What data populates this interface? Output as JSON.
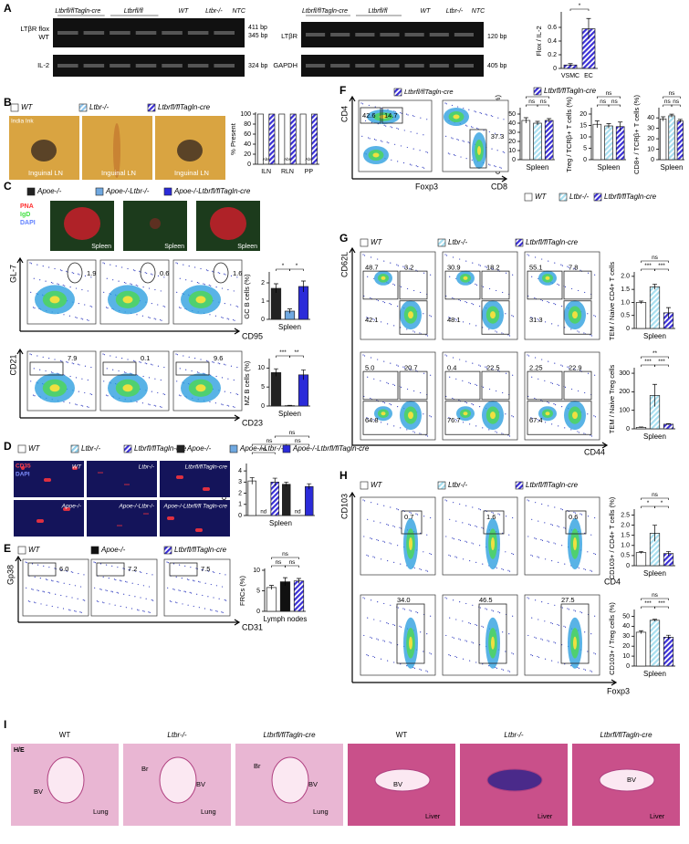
{
  "panels": {
    "A": {
      "label": "A",
      "gel1": {
        "lanes": [
          "Ltbrfl/flTagln-cre",
          "Ltbrfl/fl",
          "WT",
          "Ltbr-/-",
          "NTC"
        ],
        "rows": [
          "LTβR flox",
          "WT",
          "IL-2"
        ],
        "sizes": [
          "411 bp",
          "345 bp",
          "324 bp"
        ]
      },
      "gel2": {
        "lanes": [
          "Ltbrfl/flTagln-cre",
          "Ltbrfl/fl",
          "WT",
          "Ltbr-/-",
          "NTC"
        ],
        "rows": [
          "LTβR",
          "GAPDH"
        ],
        "sizes": [
          "120 bp",
          "405 bp"
        ]
      },
      "legend": [
        {
          "name": "Ltbrfl/flTagln-cre",
          "color": "#3a2fd6",
          "hatched": true
        }
      ]
    },
    "B": {
      "label": "B",
      "photo_text": "India Ink",
      "photos": [
        "Inguinal LN",
        "Inguinal LN",
        "Inguinal LN"
      ]
    },
    "C": {
      "label": "C",
      "legend": [
        {
          "name": "Apoe-/-",
          "color": "#222222",
          "hatched": false
        },
        {
          "name": "Apoe-/-Ltbr-/-",
          "color": "#6fa8e0",
          "hatched": false
        },
        {
          "name": "Apoe-/-Ltbrfl/flTagln-cre",
          "color": "#2b2bd9",
          "hatched": false
        }
      ],
      "stain": [
        "PNA",
        "IgD",
        "DAPI"
      ],
      "images": [
        "Spleen",
        "Spleen",
        "Spleen"
      ],
      "flow": [
        {
          "y": "GL-7",
          "x": "CD95",
          "gates": [
            "1.9",
            "0.6",
            "1.6"
          ]
        },
        {
          "y": "CD21",
          "x": "CD23",
          "gates": [
            "7.9",
            "0.1",
            "9.6"
          ]
        }
      ]
    },
    "D": {
      "label": "D",
      "legend": [
        {
          "name": "WT",
          "color": "#ffffff",
          "hatched": false
        },
        {
          "name": "Ltbr-/-",
          "color": "#8fd0ec",
          "hatched": true
        },
        {
          "name": "Ltbrfl/flTagln-cre",
          "color": "#3a2fd6",
          "hatched": true
        },
        {
          "name": "Apoe-/-",
          "color": "#222222",
          "hatched": false
        },
        {
          "name": "Apoe-/-Ltbr-/-",
          "color": "#6fa8e0",
          "hatched": false
        },
        {
          "name": "Apoe-/-Ltbrfl/flTagln-cre",
          "color": "#2b2bd9",
          "hatched": false
        }
      ],
      "stain": [
        "CD35",
        "DAPI"
      ],
      "images": [
        "WT",
        "Ltbr-/-",
        "Ltbrfl/flTagln-cre",
        "Apoe-/-",
        "Apoe-/-Ltbr-/-",
        "Apoe-/-Ltbrfl/fl Tagln-cre"
      ]
    },
    "E": {
      "label": "E",
      "legend": [
        {
          "name": "WT",
          "color": "#ffffff",
          "hatched": false
        },
        {
          "name": "Apoe-/-",
          "color": "#111111",
          "hatched": false
        },
        {
          "name": "Ltbrfl/flTagln-cre",
          "color": "#3a2fd6",
          "hatched": true
        }
      ],
      "flow": {
        "y": "Gp38",
        "x": "CD31",
        "gates": [
          "6.0",
          "7.2",
          "7.5"
        ]
      }
    },
    "F": {
      "label": "F",
      "title": "Ltbrfl/flTagln-cre",
      "y": "CD4",
      "x1": "Foxp3",
      "x2": "CD8",
      "gates": [
        "42.6",
        "14.7",
        "37.3"
      ],
      "legend": [
        {
          "name": "WT",
          "color": "#ffffff",
          "hatched": false
        },
        {
          "name": "Ltbr-/-",
          "color": "#a8dff0",
          "hatched": true
        },
        {
          "name": "Ltbrfl/flTagln-cre",
          "color": "#3a2fd6",
          "hatched": true
        }
      ]
    },
    "G": {
      "label": "G",
      "y": "CD62L",
      "x": "CD44",
      "gates": [
        [
          [
            "48.7",
            "3.2",
            "42.1"
          ],
          [
            "30.9",
            "18.2",
            "48.1"
          ],
          [
            "55.1",
            "7.8",
            "31.3"
          ]
        ],
        [
          [
            "5.0",
            "20.7",
            "64.8"
          ],
          [
            "0.4",
            "22.5",
            "76.7"
          ],
          [
            "2.25",
            "22.9",
            "67.4"
          ]
        ]
      ],
      "legend": [
        {
          "name": "WT",
          "color": "#ffffff",
          "hatched": false
        },
        {
          "name": "Ltbr-/-",
          "color": "#a8dff0",
          "hatched": true
        },
        {
          "name": "Ltbrfl/flTagln-cre",
          "color": "#3a2fd6",
          "hatched": true
        }
      ]
    },
    "H": {
      "label": "H",
      "y": "CD103",
      "x1": "CD4",
      "x2": "Foxp3",
      "gates": [
        [
          "0.7",
          "1.6",
          "0.6"
        ],
        [
          "34.0",
          "46.5",
          "27.5"
        ]
      ],
      "legend": [
        {
          "name": "WT",
          "color": "#ffffff",
          "hatched": false
        },
        {
          "name": "Ltbr-/-",
          "color": "#a8dff0",
          "hatched": true
        },
        {
          "name": "Ltbrfl/flTagln-cre",
          "color": "#3a2fd6",
          "hatched": true
        }
      ]
    },
    "I": {
      "label": "I",
      "titles": [
        "WT",
        "Ltbr-/-",
        "Ltbrfl/flTagln-cre",
        "WT",
        "Ltbr-/-",
        "Ltbrfl/flTagln-cre"
      ],
      "stain": "H/E",
      "marks": [
        [
          "BV",
          "Lung"
        ],
        [
          "Br",
          "BV",
          "Lung"
        ],
        [
          "Br",
          "BV",
          "Lung"
        ],
        [
          "BV",
          "Liver"
        ],
        [
          "Liver"
        ],
        [
          "BV",
          "Liver"
        ]
      ]
    }
  },
  "chart_data": [
    {
      "type": "bar",
      "ylabel": "Flox / IL-2",
      "categories": [
        "VSMC",
        "EC"
      ],
      "values": [
        0.05,
        0.58
      ],
      "errors": [
        0.02,
        0.15
      ],
      "colors": [
        "#3a2fd6",
        "#3a2fd6"
      ],
      "hatched": [
        true,
        true
      ],
      "ylim": [
        0,
        0.8
      ],
      "yticks": [
        0,
        0.2,
        0.4,
        0.6
      ],
      "brackets": [
        {
          "label": "*",
          "bars": [
            0,
            1
          ]
        }
      ]
    },
    {
      "type": "grouped-bar",
      "ylabel": "% Present",
      "categories": [
        "ILN",
        "RLN",
        "PP"
      ],
      "ylim": [
        0,
        100
      ],
      "yticks": [
        0,
        20,
        40,
        60,
        80,
        100
      ],
      "series": [
        {
          "name": "WT",
          "color": "#ffffff",
          "hatched": false,
          "values": [
            100,
            100,
            100
          ]
        },
        {
          "name": "Ltbr-/-",
          "color": "#8fc6ee",
          "hatched": true,
          "values": [
            0,
            0,
            0
          ],
          "notes": [
            "Abs",
            "Abs",
            "Abs"
          ]
        },
        {
          "name": "Ltbrfl/flTagln-cre",
          "color": "#3a2fd6",
          "hatched": true,
          "values": [
            100,
            100,
            100
          ]
        }
      ]
    },
    {
      "type": "bar",
      "ylabel": "GC B cells (%)",
      "xlabel": "Spleen",
      "values": [
        1.7,
        0.45,
        1.8
      ],
      "errors": [
        0.25,
        0.12,
        0.3
      ],
      "colors": [
        "#222222",
        "#6fa8e0",
        "#2b2bd9"
      ],
      "hatched": [
        false,
        false,
        false
      ],
      "ylim": [
        0,
        2.5
      ],
      "yticks": [
        0,
        1,
        2
      ],
      "brackets": [
        {
          "label": "*",
          "bars": [
            0,
            1
          ]
        },
        {
          "label": "*",
          "bars": [
            1,
            2
          ]
        }
      ]
    },
    {
      "type": "bar",
      "ylabel": "MZ B cells (%)",
      "xlabel": "Spleen",
      "values": [
        8.8,
        0.1,
        8.2
      ],
      "errors": [
        1.0,
        0.1,
        1.3
      ],
      "colors": [
        "#222222",
        "#6fa8e0",
        "#2b2bd9"
      ],
      "hatched": [
        false,
        false,
        false
      ],
      "ylim": [
        0,
        12
      ],
      "yticks": [
        0,
        5,
        10
      ],
      "brackets": [
        {
          "label": "***",
          "bars": [
            0,
            1
          ]
        },
        {
          "label": "**",
          "bars": [
            1,
            2
          ]
        }
      ]
    },
    {
      "type": "bar",
      "ylabel": "FDC density",
      "xlabel": "Spleen",
      "values": [
        3.1,
        0,
        3.0,
        2.8,
        0,
        2.6
      ],
      "errors": [
        0.3,
        0,
        0.35,
        0.2,
        0,
        0.25
      ],
      "notes": [
        null,
        "nd",
        null,
        null,
        "nd",
        null
      ],
      "colors": [
        "#ffffff",
        "#8fd0ec",
        "#3a2fd6",
        "#222222",
        "#6fa8e0",
        "#2b2bd9"
      ],
      "hatched": [
        false,
        true,
        true,
        false,
        false,
        false
      ],
      "ylim": [
        0,
        4.5
      ],
      "yticks": [
        0,
        1,
        2,
        3,
        4
      ],
      "brackets": [
        {
          "label": "ns",
          "bars": [
            0,
            2
          ]
        },
        {
          "label": "ns",
          "bars": [
            3,
            5
          ]
        },
        {
          "label": "ns",
          "bars": [
            0,
            3
          ]
        },
        {
          "label": "ns",
          "bars": [
            2,
            5
          ]
        }
      ]
    },
    {
      "type": "bar",
      "ylabel": "FRCs (%)",
      "xlabel": "Lymph nodes",
      "values": [
        5.8,
        7.2,
        7.4
      ],
      "errors": [
        0.5,
        1.0,
        0.6
      ],
      "colors": [
        "#ffffff",
        "#111111",
        "#3a2fd6"
      ],
      "hatched": [
        false,
        false,
        true
      ],
      "ylim": [
        0,
        10
      ],
      "yticks": [
        0,
        5,
        10
      ],
      "brackets": [
        {
          "label": "ns",
          "bars": [
            0,
            1
          ]
        },
        {
          "label": "ns",
          "bars": [
            1,
            2
          ]
        },
        {
          "label": "ns",
          "bars": [
            0,
            2
          ]
        }
      ]
    },
    {
      "type": "bar",
      "ylabel": "CD4+ / TCRβ+ T cells (%)",
      "xlabel": "Spleen",
      "values": [
        43,
        40,
        43
      ],
      "errors": [
        3,
        2,
        2
      ],
      "colors": [
        "#ffffff",
        "#a8dff0",
        "#3a2fd6"
      ],
      "hatched": [
        false,
        true,
        true
      ],
      "ylim": [
        0,
        55
      ],
      "yticks": [
        0,
        10,
        20,
        30,
        40,
        50
      ],
      "brackets": [
        {
          "label": "ns",
          "bars": [
            0,
            1
          ]
        },
        {
          "label": "ns",
          "bars": [
            1,
            2
          ]
        },
        {
          "label": "ns",
          "bars": [
            0,
            2
          ]
        }
      ]
    },
    {
      "type": "bar",
      "ylabel": "Treg / TCRβ+ T cells (%)",
      "xlabel": "Spleen",
      "values": [
        15.5,
        14.8,
        14.5
      ],
      "errors": [
        1.5,
        1,
        2
      ],
      "colors": [
        "#ffffff",
        "#a8dff0",
        "#3a2fd6"
      ],
      "hatched": [
        false,
        true,
        true
      ],
      "ylim": [
        0,
        22
      ],
      "yticks": [
        0,
        5,
        10,
        15,
        20
      ],
      "brackets": [
        {
          "label": "ns",
          "bars": [
            0,
            1
          ]
        },
        {
          "label": "ns",
          "bars": [
            1,
            2
          ]
        },
        {
          "label": "ns",
          "bars": [
            0,
            2
          ]
        }
      ]
    },
    {
      "type": "bar",
      "ylabel": "CD8+ / TCRβ+ T cells (%)",
      "xlabel": "Spleen",
      "values": [
        39,
        42,
        37
      ],
      "errors": [
        2,
        1.5,
        1.5
      ],
      "colors": [
        "#ffffff",
        "#a8dff0",
        "#3a2fd6"
      ],
      "hatched": [
        false,
        true,
        true
      ],
      "ylim": [
        0,
        48
      ],
      "yticks": [
        0,
        10,
        20,
        30,
        40
      ],
      "brackets": [
        {
          "label": "ns",
          "bars": [
            0,
            1
          ]
        },
        {
          "label": "ns",
          "bars": [
            1,
            2
          ]
        },
        {
          "label": "ns",
          "bars": [
            0,
            2
          ]
        }
      ]
    },
    {
      "type": "bar",
      "ylabel": "TEM / Naive CD4+ T cells",
      "xlabel": "Spleen",
      "values": [
        1.0,
        1.6,
        0.6
      ],
      "errors": [
        0.05,
        0.1,
        0.2
      ],
      "colors": [
        "#ffffff",
        "#a8dff0",
        "#3a2fd6"
      ],
      "hatched": [
        false,
        true,
        true
      ],
      "ylim": [
        0,
        2.1
      ],
      "yticks": [
        0,
        0.5,
        {
          "value": 1,
          "label": "1.0"
        },
        1.5,
        {
          "value": 2,
          "label": "2.0"
        }
      ],
      "brackets": [
        {
          "label": "***",
          "bars": [
            0,
            1
          ]
        },
        {
          "label": "***",
          "bars": [
            1,
            2
          ]
        },
        {
          "label": "ns",
          "bars": [
            0,
            2
          ]
        }
      ]
    },
    {
      "type": "bar",
      "ylabel": "TEM / Naive Treg cells",
      "xlabel": "Spleen",
      "values": [
        8,
        180,
        25
      ],
      "errors": [
        2,
        60,
        3
      ],
      "colors": [
        "#ffffff",
        "#a8dff0",
        "#3a2fd6"
      ],
      "hatched": [
        false,
        true,
        true
      ],
      "ylim": [
        0,
        320
      ],
      "yticks": [
        0,
        100,
        200,
        300
      ],
      "brackets": [
        {
          "label": "***",
          "bars": [
            0,
            1
          ]
        },
        {
          "label": "***",
          "bars": [
            1,
            2
          ]
        },
        {
          "label": "**",
          "bars": [
            0,
            2
          ]
        }
      ]
    },
    {
      "type": "bar",
      "ylabel": "CD103+ / CD4+ T cells (%)",
      "xlabel": "Spleen",
      "values": [
        0.65,
        1.6,
        0.6
      ],
      "errors": [
        0.05,
        0.4,
        0.1
      ],
      "colors": [
        "#ffffff",
        "#a8dff0",
        "#3a2fd6"
      ],
      "hatched": [
        false,
        true,
        true
      ],
      "ylim": [
        0,
        2.7
      ],
      "yticks": [
        0,
        0.5,
        {
          "value": 1,
          "label": "1.0"
        },
        1.5,
        {
          "value": 2,
          "label": "2.0"
        },
        2.5
      ],
      "brackets": [
        {
          "label": "*",
          "bars": [
            0,
            1
          ]
        },
        {
          "label": "*",
          "bars": [
            1,
            2
          ]
        },
        {
          "label": "ns",
          "bars": [
            0,
            2
          ]
        }
      ]
    },
    {
      "type": "bar",
      "ylabel": "CD103+ / Treg cells (%)",
      "xlabel": "Spleen",
      "values": [
        34,
        46,
        29
      ],
      "errors": [
        1.5,
        1,
        2
      ],
      "colors": [
        "#ffffff",
        "#a8dff0",
        "#3a2fd6"
      ],
      "hatched": [
        false,
        true,
        true
      ],
      "ylim": [
        0,
        55
      ],
      "yticks": [
        0,
        10,
        20,
        30,
        40,
        50
      ],
      "brackets": [
        {
          "label": "***",
          "bars": [
            0,
            1
          ]
        },
        {
          "label": "***",
          "bars": [
            1,
            2
          ]
        },
        {
          "label": "ns",
          "bars": [
            0,
            2
          ]
        }
      ]
    }
  ]
}
